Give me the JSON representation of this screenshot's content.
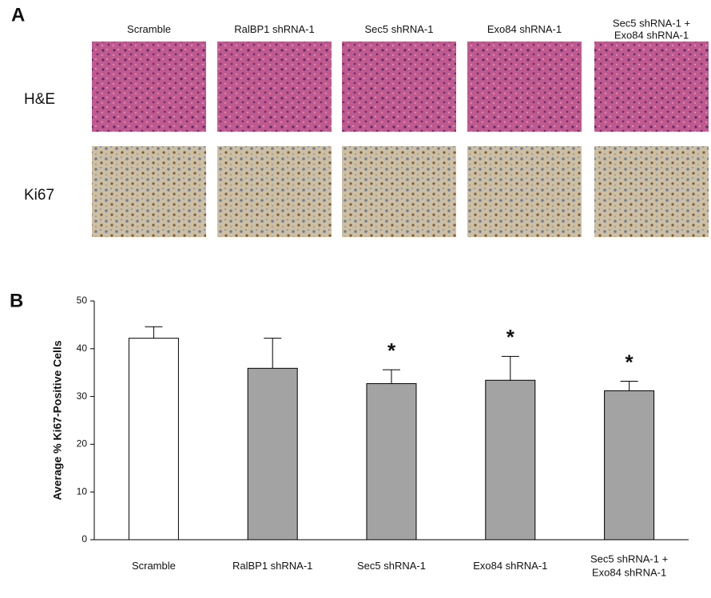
{
  "panel_a": {
    "label": "A",
    "columns": [
      "Scramble",
      "RalBP1 shRNA-1",
      "Sec5 shRNA-1",
      "Exo84 shRNA-1",
      "Sec5 shRNA-1 +\nExo84 shRNA-1"
    ],
    "rows": [
      "H&E",
      "Ki67"
    ]
  },
  "chart_data": {
    "type": "bar",
    "panel_label": "B",
    "ylabel": "Average % Ki67-Positive Cells",
    "categories": [
      "Scramble",
      "RalBP1 shRNA-1",
      "Sec5 shRNA-1",
      "Exo84 shRNA-1",
      "Sec5 shRNA-1 +\nExo84 shRNA-1"
    ],
    "values": [
      42.2,
      35.9,
      32.7,
      33.4,
      31.2
    ],
    "errors": [
      2.4,
      6.3,
      2.9,
      5.0,
      2.0
    ],
    "significance": [
      null,
      null,
      "*",
      "*",
      "*"
    ],
    "colors": [
      "#ffffff",
      "#a3a3a3",
      "#a3a3a3",
      "#a3a3a3",
      "#a3a3a3"
    ],
    "ylim": [
      0,
      50
    ],
    "yticks": [
      0,
      10,
      20,
      30,
      40,
      50
    ]
  }
}
